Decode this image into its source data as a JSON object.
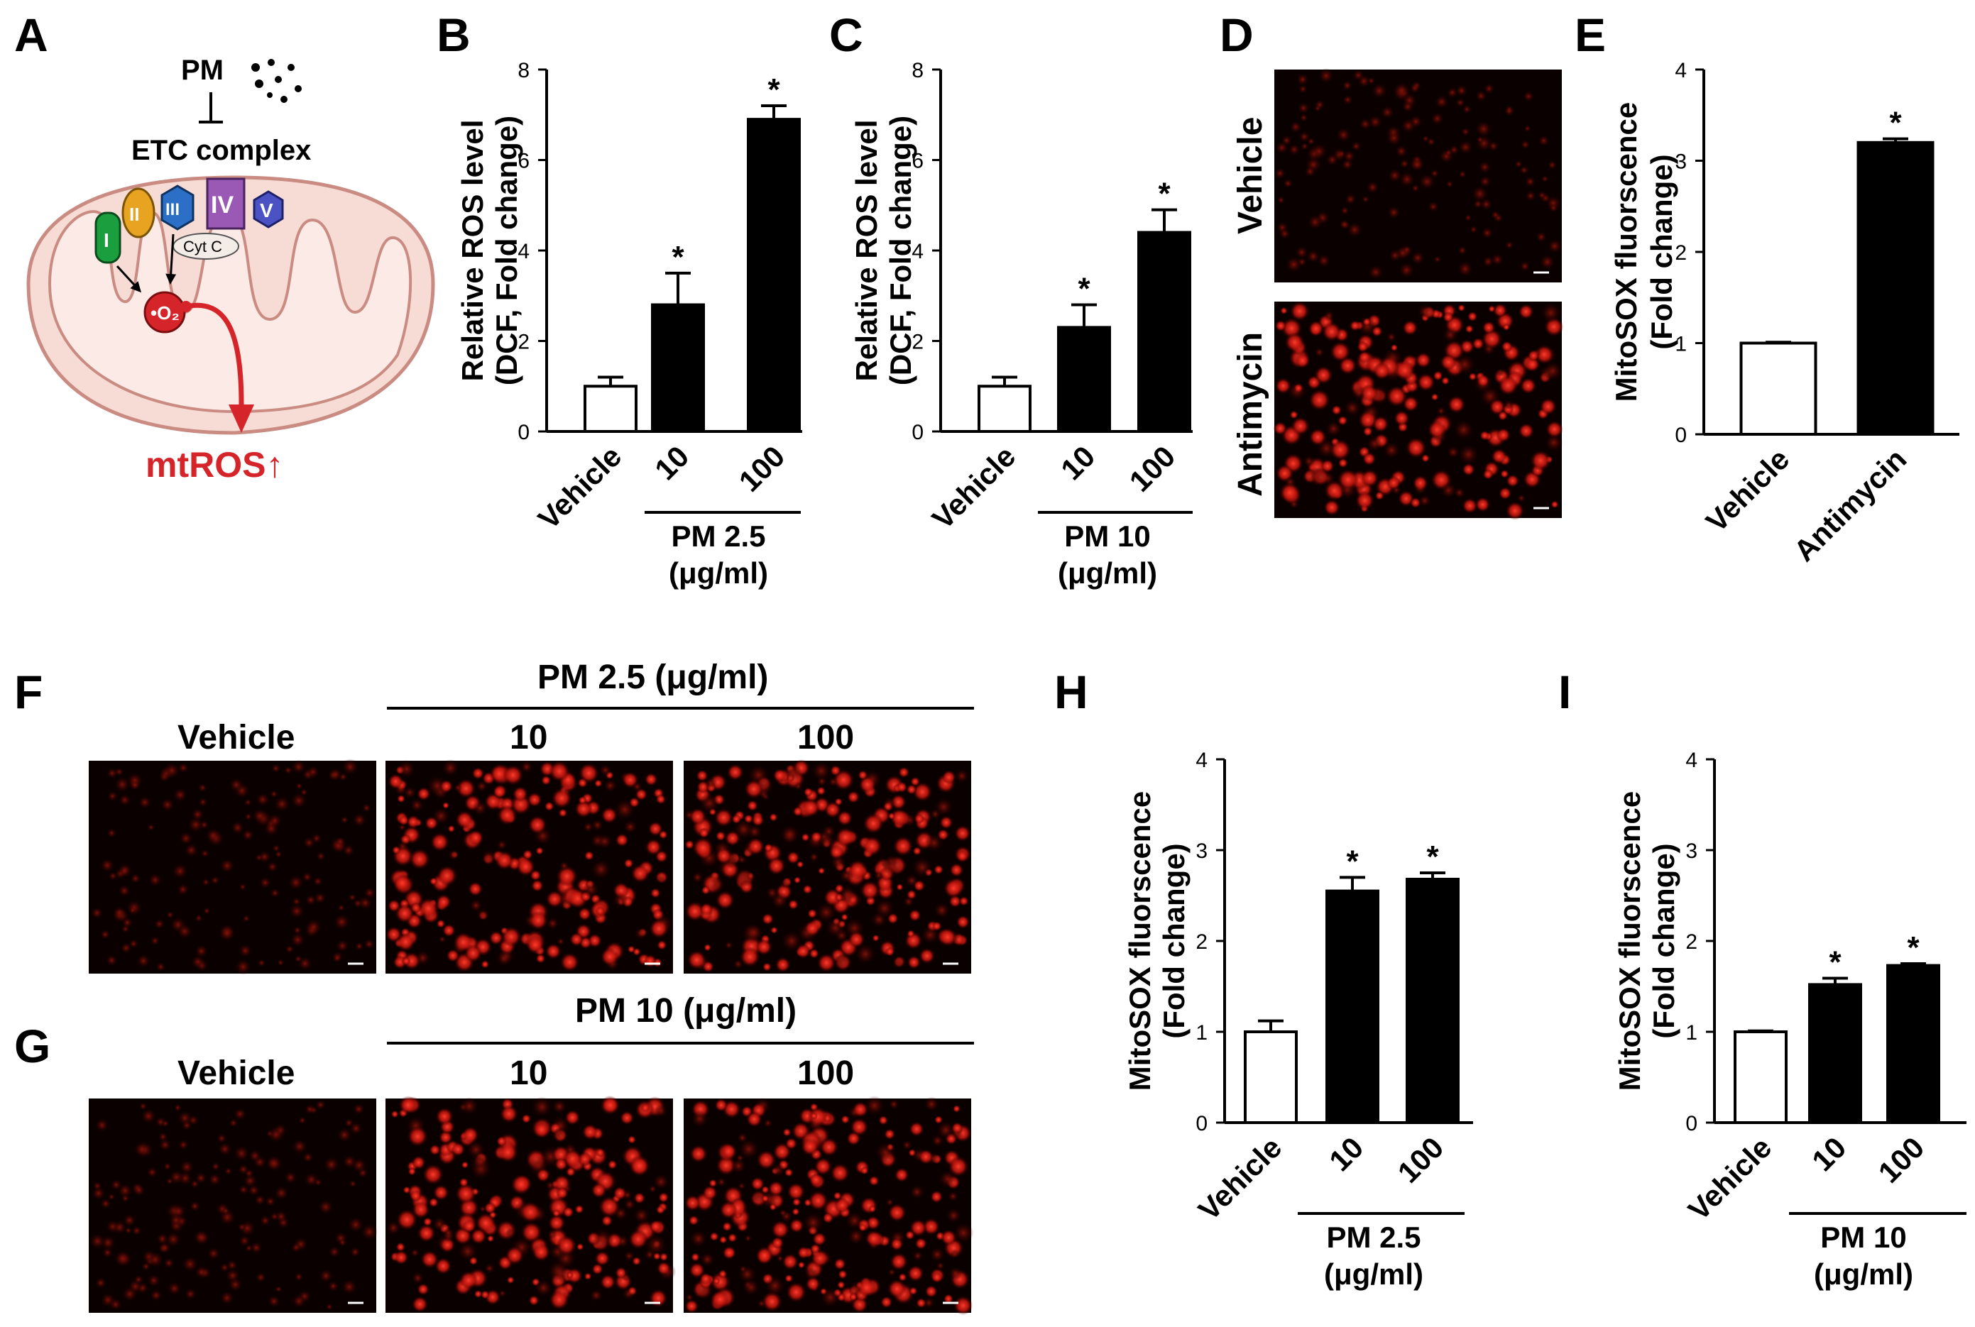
{
  "figure": {
    "panel_letters": [
      "A",
      "B",
      "C",
      "D",
      "E",
      "F",
      "G",
      "H",
      "I"
    ],
    "panel_a": {
      "pm": "PM",
      "etc_complex": "ETC complex",
      "complexes": [
        "I",
        "II",
        "III",
        "IV",
        "V"
      ],
      "cyt_c": "Cyt C",
      "superoxide": "•O₂",
      "mtros": "mtROS↑",
      "colors": {
        "I": "#1a9e3e",
        "II": "#e8a320",
        "III": "#2b6fc6",
        "IV": "#9b59b6",
        "V": "#4a52c4",
        "mito_outer": "#f5d5cf",
        "mito_stroke": "#c98b82",
        "ros": "#d6252a"
      }
    },
    "panel_d": {
      "labels": [
        "Vehicle",
        "Antimycin"
      ]
    },
    "panel_f": {
      "group_title": "PM 2.5 (μg/ml)",
      "columns": [
        "Vehicle",
        "10",
        "100"
      ]
    },
    "panel_g": {
      "group_title": "PM 10 (μg/ml)",
      "columns": [
        "Vehicle",
        "10",
        "100"
      ]
    }
  },
  "chart_data": [
    {
      "panel": "B",
      "type": "bar",
      "ylabel_lines": [
        "Relative ROS level",
        "(DCF, Fold change)"
      ],
      "categories": [
        "Vehicle",
        "10",
        "100"
      ],
      "values": [
        1.0,
        2.8,
        6.9
      ],
      "errors": [
        0.2,
        0.7,
        0.3
      ],
      "significance": [
        "",
        "*",
        "*"
      ],
      "fills": [
        "#ffffff",
        "#000000",
        "#000000"
      ],
      "ylim": [
        0,
        8
      ],
      "yticks": [
        0,
        2,
        4,
        6,
        8
      ],
      "group_label_lines": [
        "PM 2.5",
        "(μg/ml)"
      ]
    },
    {
      "panel": "C",
      "type": "bar",
      "ylabel_lines": [
        "Relative ROS level",
        "(DCF, Fold change)"
      ],
      "categories": [
        "Vehicle",
        "10",
        "100"
      ],
      "values": [
        1.0,
        2.3,
        4.4
      ],
      "errors": [
        0.2,
        0.5,
        0.5
      ],
      "significance": [
        "",
        "*",
        "*"
      ],
      "fills": [
        "#ffffff",
        "#000000",
        "#000000"
      ],
      "ylim": [
        0,
        8
      ],
      "yticks": [
        0,
        2,
        4,
        6,
        8
      ],
      "group_label_lines": [
        "PM 10",
        "(μg/ml)"
      ]
    },
    {
      "panel": "E",
      "type": "bar",
      "ylabel_lines": [
        "MitoSOX fluorscence",
        "(Fold change)"
      ],
      "categories": [
        "Vehicle",
        "Antimycin"
      ],
      "values": [
        1.0,
        3.2
      ],
      "errors": [
        0.01,
        0.04
      ],
      "significance": [
        "",
        "*"
      ],
      "fills": [
        "#ffffff",
        "#000000"
      ],
      "ylim": [
        0,
        4
      ],
      "yticks": [
        0,
        1,
        2,
        3,
        4
      ],
      "group_label_lines": []
    },
    {
      "panel": "H",
      "type": "bar",
      "ylabel_lines": [
        "MitoSOX fluorscence",
        "(Fold change)"
      ],
      "categories": [
        "Vehicle",
        "10",
        "100"
      ],
      "values": [
        1.0,
        2.55,
        2.68
      ],
      "errors": [
        0.12,
        0.15,
        0.07
      ],
      "significance": [
        "",
        "*",
        "*"
      ],
      "fills": [
        "#ffffff",
        "#000000",
        "#000000"
      ],
      "ylim": [
        0,
        4
      ],
      "yticks": [
        0,
        1,
        2,
        3,
        4
      ],
      "group_label_lines": [
        "PM 2.5",
        "(μg/ml)"
      ]
    },
    {
      "panel": "I",
      "type": "bar",
      "ylabel_lines": [
        "MitoSOX fluorscence",
        "(Fold change)"
      ],
      "categories": [
        "Vehicle",
        "10",
        "100"
      ],
      "values": [
        1.0,
        1.52,
        1.73
      ],
      "errors": [
        0.01,
        0.07,
        0.02
      ],
      "significance": [
        "",
        "*",
        "*"
      ],
      "fills": [
        "#ffffff",
        "#000000",
        "#000000"
      ],
      "ylim": [
        0,
        4
      ],
      "yticks": [
        0,
        1,
        2,
        3,
        4
      ],
      "group_label_lines": [
        "PM 10",
        "(μg/ml)"
      ]
    }
  ]
}
